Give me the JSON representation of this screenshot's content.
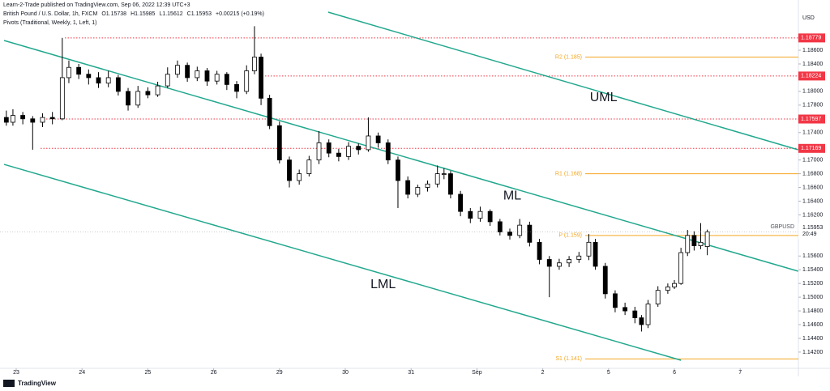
{
  "chart_data": {
    "type": "candlestick",
    "header": {
      "publisher": "Learn-2-Trade published on TradingView.com, Sep 06, 2022 12:39 UTC+3",
      "symbol_items": [
        "British Pound / U.S. Dollar, 1h, FXCM",
        "O1.15738",
        "H1.15985",
        "L1.15612",
        "C1.15953",
        "+0.00215 (+0.19%)"
      ],
      "indicator": "Pivots (Traditional, Weekly, 1, Left, 1)"
    },
    "currency": "USD",
    "footer": "TradingView",
    "xlim": [
      -0.2463,
      11.884
    ],
    "xticks": [
      {
        "value": 0,
        "label": "23"
      },
      {
        "value": 1,
        "label": "24"
      },
      {
        "value": 2,
        "label": "25"
      },
      {
        "value": 3,
        "label": "26"
      },
      {
        "value": 4,
        "label": "29"
      },
      {
        "value": 5,
        "label": "30"
      },
      {
        "value": 6,
        "label": "31"
      },
      {
        "value": 7,
        "label": "Sep"
      },
      {
        "value": 8,
        "label": "2"
      },
      {
        "value": 9,
        "label": "5"
      },
      {
        "value": 10,
        "label": "6"
      },
      {
        "value": 11,
        "label": "7"
      }
    ],
    "ylim": [
      1.13963,
      1.19332
    ],
    "yticks": [
      {
        "value": 1.186,
        "label": "1.18600"
      },
      {
        "value": 1.184,
        "label": "1.18400"
      },
      {
        "value": 1.18,
        "label": "1.18000"
      },
      {
        "value": 1.178,
        "label": "1.17800"
      },
      {
        "value": 1.174,
        "label": "1.17400"
      },
      {
        "value": 1.17,
        "label": "1.17000"
      },
      {
        "value": 1.168,
        "label": "1.16800"
      },
      {
        "value": 1.166,
        "label": "1.16600"
      },
      {
        "value": 1.164,
        "label": "1.16400"
      },
      {
        "value": 1.162,
        "label": "1.16200"
      },
      {
        "value": 1.16,
        "label": "1.16000"
      },
      {
        "value": 1.156,
        "label": "1.15600"
      },
      {
        "value": 1.154,
        "label": "1.15400"
      },
      {
        "value": 1.152,
        "label": "1.15200"
      },
      {
        "value": 1.15,
        "label": "1.15000"
      },
      {
        "value": 1.148,
        "label": "1.14800"
      },
      {
        "value": 1.146,
        "label": "1.14600"
      },
      {
        "value": 1.144,
        "label": "1.14400"
      },
      {
        "value": 1.142,
        "label": "1.14200"
      }
    ],
    "candles": {
      "x": [
        -0.15,
        -0.05,
        0.1,
        0.25,
        0.4,
        0.55,
        0.7,
        0.8,
        0.95,
        1.1,
        1.25,
        1.4,
        1.55,
        1.7,
        1.85,
        2.0,
        2.15,
        2.3,
        2.45,
        2.6,
        2.75,
        2.9,
        3.05,
        3.2,
        3.35,
        3.5,
        3.62,
        3.72,
        3.85,
        4.0,
        4.15,
        4.3,
        4.45,
        4.6,
        4.75,
        4.9,
        5.05,
        5.2,
        5.35,
        5.5,
        5.65,
        5.8,
        5.95,
        6.1,
        6.25,
        6.4,
        6.5,
        6.6,
        6.75,
        6.9,
        7.05,
        7.2,
        7.35,
        7.5,
        7.65,
        7.8,
        7.95,
        8.1,
        8.25,
        8.4,
        8.55,
        8.7,
        8.8,
        8.95,
        9.1,
        9.25,
        9.4,
        9.5,
        9.6,
        9.75,
        9.9,
        10.0,
        10.1,
        10.2,
        10.3,
        10.4,
        10.5
      ],
      "open": [
        1.1762,
        1.1755,
        1.1765,
        1.176,
        1.1755,
        1.1762,
        1.176,
        1.182,
        1.1835,
        1.1825,
        1.182,
        1.1812,
        1.182,
        1.18,
        1.178,
        1.18,
        1.1795,
        1.1808,
        1.1825,
        1.1838,
        1.182,
        1.183,
        1.1815,
        1.1825,
        1.181,
        1.18,
        1.183,
        1.185,
        1.179,
        1.175,
        1.17,
        1.167,
        1.168,
        1.17,
        1.1725,
        1.171,
        1.1705,
        1.172,
        1.1715,
        1.1735,
        1.1725,
        1.17,
        1.167,
        1.165,
        1.166,
        1.1665,
        1.168,
        1.168,
        1.165,
        1.1625,
        1.1615,
        1.1625,
        1.161,
        1.1595,
        1.159,
        1.1605,
        1.158,
        1.1555,
        1.1545,
        1.155,
        1.1555,
        1.156,
        1.158,
        1.1545,
        1.1505,
        1.1485,
        1.148,
        1.147,
        1.146,
        1.149,
        1.151,
        1.1515,
        1.152,
        1.1565,
        1.159,
        1.1575,
        1.15738
      ],
      "high": [
        1.1772,
        1.1774,
        1.177,
        1.1764,
        1.1768,
        1.177,
        1.1878,
        1.1845,
        1.184,
        1.1832,
        1.1828,
        1.183,
        1.1824,
        1.1805,
        1.1808,
        1.1806,
        1.1814,
        1.1835,
        1.1845,
        1.1842,
        1.1836,
        1.1834,
        1.183,
        1.1828,
        1.1815,
        1.1838,
        1.1895,
        1.1855,
        1.1795,
        1.1756,
        1.1705,
        1.1686,
        1.1706,
        1.1742,
        1.173,
        1.1716,
        1.1726,
        1.1724,
        1.1762,
        1.174,
        1.173,
        1.1705,
        1.1676,
        1.1664,
        1.167,
        1.1692,
        1.1688,
        1.1684,
        1.1655,
        1.163,
        1.1632,
        1.1628,
        1.1614,
        1.16,
        1.1614,
        1.161,
        1.1585,
        1.156,
        1.1556,
        1.156,
        1.1566,
        1.1592,
        1.1585,
        1.155,
        1.151,
        1.1492,
        1.1486,
        1.1474,
        1.1496,
        1.1516,
        1.152,
        1.1525,
        1.1572,
        1.1598,
        1.1596,
        1.1608,
        1.15985
      ],
      "low": [
        1.175,
        1.175,
        1.1752,
        1.1715,
        1.1748,
        1.1752,
        1.1758,
        1.1812,
        1.1818,
        1.181,
        1.1805,
        1.1806,
        1.1794,
        1.1772,
        1.1776,
        1.179,
        1.1792,
        1.1805,
        1.182,
        1.1814,
        1.1815,
        1.1808,
        1.181,
        1.1802,
        1.179,
        1.1796,
        1.1825,
        1.178,
        1.1745,
        1.1695,
        1.166,
        1.1664,
        1.1676,
        1.1694,
        1.1704,
        1.1698,
        1.17,
        1.1708,
        1.1712,
        1.1718,
        1.1694,
        1.163,
        1.1644,
        1.1646,
        1.1654,
        1.166,
        1.1672,
        1.1644,
        1.1618,
        1.1608,
        1.161,
        1.1604,
        1.159,
        1.1584,
        1.1586,
        1.1574,
        1.1548,
        1.15,
        1.154,
        1.1544,
        1.155,
        1.1554,
        1.154,
        1.1498,
        1.1478,
        1.1474,
        1.1462,
        1.145,
        1.1455,
        1.1486,
        1.1505,
        1.1512,
        1.1518,
        1.156,
        1.1568,
        1.157,
        1.15612
      ],
      "close": [
        1.1755,
        1.1765,
        1.176,
        1.1755,
        1.1762,
        1.176,
        1.182,
        1.1835,
        1.1825,
        1.182,
        1.1812,
        1.182,
        1.18,
        1.178,
        1.18,
        1.1795,
        1.1808,
        1.1825,
        1.1838,
        1.182,
        1.183,
        1.1815,
        1.1825,
        1.181,
        1.18,
        1.183,
        1.185,
        1.179,
        1.175,
        1.17,
        1.167,
        1.168,
        1.17,
        1.1725,
        1.171,
        1.1705,
        1.172,
        1.1715,
        1.1735,
        1.1725,
        1.17,
        1.167,
        1.165,
        1.166,
        1.1665,
        1.168,
        1.168,
        1.165,
        1.1625,
        1.1615,
        1.1625,
        1.161,
        1.1595,
        1.159,
        1.1605,
        1.158,
        1.1555,
        1.1545,
        1.155,
        1.1555,
        1.156,
        1.158,
        1.1545,
        1.1505,
        1.1485,
        1.148,
        1.147,
        1.146,
        1.149,
        1.151,
        1.1515,
        1.152,
        1.1565,
        1.159,
        1.1575,
        1.158,
        1.15953
      ]
    },
    "up_color": "#ffffff",
    "down_color": "#000000",
    "channel_color": "#22a88e",
    "channel": [
      {
        "name": "UML",
        "x": [
          4.74,
          11.88
        ],
        "y": [
          1.19155,
          1.17149
        ]
      },
      {
        "name": "ML",
        "x": [
          -0.185,
          11.88
        ],
        "y": [
          1.18742,
          1.15379
        ]
      },
      {
        "name": "LML",
        "x": [
          -0.185,
          10.1
        ],
        "y": [
          1.16936,
          1.14081
        ]
      }
    ],
    "pivot_color": "#f5a623",
    "pivots": [
      {
        "label": "R2 (1.185)",
        "value": 1.185
      },
      {
        "label": "R1 (1.168)",
        "value": 1.168
      },
      {
        "label": "P (1.159)",
        "value": 1.159
      },
      {
        "label": "S1 (1.141)",
        "value": 1.141
      }
    ],
    "level_color": "#f23645",
    "levels": [
      1.18779,
      1.18224,
      1.17597,
      1.17169
    ],
    "last_price": {
      "symbol": "GBPUSD",
      "value": 1.15953,
      "countdown": "20:49"
    }
  }
}
